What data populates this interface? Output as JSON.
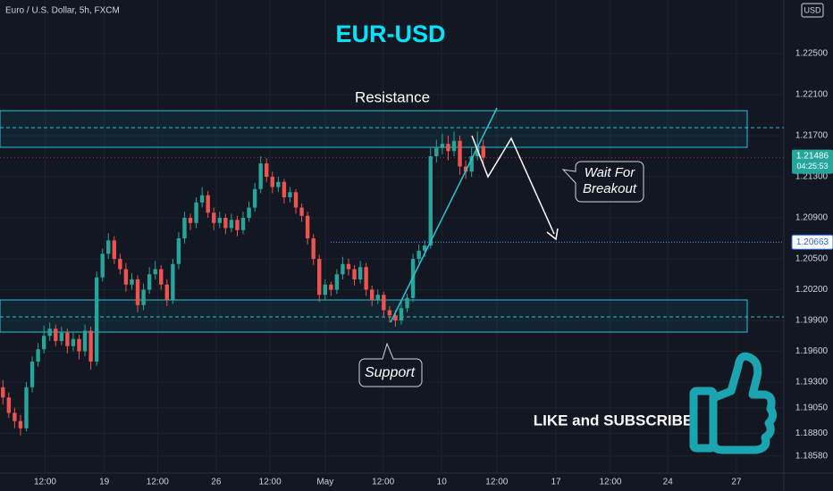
{
  "chart_data": {
    "type": "candlestick",
    "header": "Euro / U.S. Dollar, 5h, FXCM",
    "currency": "USD",
    "title": "EUR-USD",
    "annotations": {
      "resistance": "Resistance",
      "support": "Support",
      "wait_1": "Wait For",
      "wait_2": "Breakout",
      "cta": "LIKE and SUBSCRIBE"
    },
    "up_color": "#26a69a",
    "down_color": "#ef5350",
    "candles": [
      [
        1.1925,
        1.1932,
        1.1908,
        1.1915
      ],
      [
        1.1915,
        1.192,
        1.1895,
        1.19
      ],
      [
        1.19,
        1.1905,
        1.1885,
        1.1892
      ],
      [
        1.1892,
        1.1898,
        1.1878,
        1.1885
      ],
      [
        1.1885,
        1.193,
        1.1882,
        1.1925
      ],
      [
        1.1925,
        1.1955,
        1.192,
        1.195
      ],
      [
        1.195,
        1.1968,
        1.1945,
        1.1962
      ],
      [
        1.1962,
        1.1985,
        1.1958,
        1.1975
      ],
      [
        1.1975,
        1.1988,
        1.197,
        1.1982
      ],
      [
        1.1982,
        1.1986,
        1.1965,
        1.197
      ],
      [
        1.197,
        1.1984,
        1.1966,
        1.1978
      ],
      [
        1.1978,
        1.1982,
        1.1958,
        1.1965
      ],
      [
        1.1965,
        1.1978,
        1.196,
        1.1972
      ],
      [
        1.1972,
        1.1976,
        1.1952,
        1.196
      ],
      [
        1.196,
        1.1986,
        1.1955,
        1.198
      ],
      [
        1.198,
        1.1984,
        1.1942,
        1.195
      ],
      [
        1.195,
        1.2038,
        1.1946,
        1.2032
      ],
      [
        1.2032,
        1.206,
        1.2028,
        1.2055
      ],
      [
        1.2055,
        1.2075,
        1.205,
        1.2068
      ],
      [
        1.2068,
        1.2072,
        1.2045,
        1.205
      ],
      [
        1.205,
        1.2055,
        1.2035,
        1.204
      ],
      [
        1.204,
        1.2046,
        1.2018,
        1.2025
      ],
      [
        1.2025,
        1.2036,
        1.202,
        1.203
      ],
      [
        1.203,
        1.2034,
        1.1998,
        1.2005
      ],
      [
        1.2005,
        1.2026,
        1.2,
        1.202
      ],
      [
        1.202,
        1.2042,
        1.2016,
        1.2035
      ],
      [
        1.2035,
        1.2048,
        1.203,
        1.204
      ],
      [
        1.204,
        1.2044,
        1.202,
        1.2025
      ],
      [
        1.2025,
        1.203,
        1.2004,
        1.201
      ],
      [
        1.201,
        1.205,
        1.2006,
        1.2045
      ],
      [
        1.2045,
        1.2076,
        1.204,
        1.207
      ],
      [
        1.207,
        1.2096,
        1.2065,
        1.209
      ],
      [
        1.209,
        1.2094,
        1.2078,
        1.2085
      ],
      [
        1.2085,
        1.211,
        1.208,
        1.2105
      ],
      [
        1.2105,
        1.212,
        1.21,
        1.2112
      ],
      [
        1.2112,
        1.2116,
        1.209,
        1.2095
      ],
      [
        1.2095,
        1.21,
        1.2078,
        1.2085
      ],
      [
        1.2085,
        1.2096,
        1.208,
        1.209
      ],
      [
        1.209,
        1.2094,
        1.2074,
        1.208
      ],
      [
        1.208,
        1.2094,
        1.2076,
        1.2088
      ],
      [
        1.2088,
        1.2092,
        1.2072,
        1.2078
      ],
      [
        1.2078,
        1.2096,
        1.2074,
        1.209
      ],
      [
        1.209,
        1.2106,
        1.2086,
        1.21
      ],
      [
        1.21,
        1.2124,
        1.2096,
        1.2118
      ],
      [
        1.2118,
        1.215,
        1.2114,
        1.2143
      ],
      [
        1.2143,
        1.2148,
        1.2125,
        1.213
      ],
      [
        1.213,
        1.2135,
        1.2114,
        1.212
      ],
      [
        1.212,
        1.213,
        1.2115,
        1.2125
      ],
      [
        1.2125,
        1.2128,
        1.2104,
        1.211
      ],
      [
        1.211,
        1.212,
        1.2105,
        1.2115
      ],
      [
        1.2115,
        1.2118,
        1.2094,
        1.21
      ],
      [
        1.21,
        1.2104,
        1.2086,
        1.2092
      ],
      [
        1.2092,
        1.2096,
        1.2064,
        1.207
      ],
      [
        1.207,
        1.2074,
        1.2044,
        1.205
      ],
      [
        1.205,
        1.2054,
        1.2008,
        1.2015
      ],
      [
        1.2015,
        1.203,
        1.201,
        1.2025
      ],
      [
        1.2025,
        1.2028,
        1.2014,
        1.202
      ],
      [
        1.202,
        1.204,
        1.2016,
        1.2035
      ],
      [
        1.2035,
        1.2052,
        1.203,
        1.2045
      ],
      [
        1.2045,
        1.205,
        1.2034,
        1.204
      ],
      [
        1.204,
        1.2044,
        1.2024,
        1.203
      ],
      [
        1.203,
        1.2048,
        1.2026,
        1.2042
      ],
      [
        1.2042,
        1.2046,
        1.2014,
        1.202
      ],
      [
        1.202,
        1.2024,
        1.2004,
        1.201
      ],
      [
        1.201,
        1.202,
        1.2006,
        1.2015
      ],
      [
        1.2015,
        1.2018,
        1.1994,
        1.2
      ],
      [
        1.2,
        1.2004,
        1.1988,
        1.1995
      ],
      [
        1.1995,
        1.2,
        1.1984,
        1.199
      ],
      [
        1.199,
        1.2008,
        1.1986,
        1.2002
      ],
      [
        1.2002,
        1.2016,
        1.1998,
        1.2012
      ],
      [
        1.2012,
        1.2055,
        1.2008,
        1.205
      ],
      [
        1.205,
        1.2064,
        1.2046,
        1.2058
      ],
      [
        1.2058,
        1.2068,
        1.2052,
        1.2063
      ],
      [
        1.2063,
        1.2158,
        1.206,
        1.215
      ],
      [
        1.215,
        1.2166,
        1.2144,
        1.2158
      ],
      [
        1.2158,
        1.2172,
        1.2152,
        1.2162
      ],
      [
        1.2162,
        1.217,
        1.2146,
        1.2155
      ],
      [
        1.2155,
        1.2174,
        1.215,
        1.2165
      ],
      [
        1.2165,
        1.217,
        1.2132,
        1.214
      ],
      [
        1.214,
        1.2146,
        1.2128,
        1.2135
      ],
      [
        1.2135,
        1.2158,
        1.213,
        1.215
      ],
      [
        1.215,
        1.2174,
        1.2146,
        1.216
      ],
      [
        1.216,
        1.2166,
        1.214,
        1.21486
      ]
    ],
    "xlim": [
      -0.5,
      133.3
    ],
    "xticks": [
      {
        "value": 7.2,
        "label": "12:00"
      },
      {
        "value": 17.3,
        "label": "19"
      },
      {
        "value": 26.4,
        "label": "12:00"
      },
      {
        "value": 36.4,
        "label": "26"
      },
      {
        "value": 45.6,
        "label": "12:00"
      },
      {
        "value": 55,
        "label": "May"
      },
      {
        "value": 64.9,
        "label": "12:00"
      },
      {
        "value": 74.9,
        "label": "10"
      },
      {
        "value": 84.3,
        "label": "12:00"
      },
      {
        "value": 94.4,
        "label": "17"
      },
      {
        "value": 103.7,
        "label": "12:00"
      },
      {
        "value": 113.5,
        "label": "24"
      },
      {
        "value": 125.2,
        "label": "27"
      }
    ],
    "ylim": [
      1.18413,
      1.23022
    ],
    "yticks": [
      {
        "value": 1.225,
        "label": "1.22500"
      },
      {
        "value": 1.221,
        "label": "1.22100"
      },
      {
        "value": 1.217,
        "label": "1.21700"
      },
      {
        "value": 1.213,
        "label": "1.21300"
      },
      {
        "value": 1.209,
        "label": "1.20900"
      },
      {
        "value": 1.205,
        "label": "1.20500"
      },
      {
        "value": 1.202,
        "label": "1.20200"
      },
      {
        "value": 1.199,
        "label": "1.19900"
      },
      {
        "value": 1.196,
        "label": "1.19600"
      },
      {
        "value": 1.193,
        "label": "1.19300"
      },
      {
        "value": 1.1905,
        "label": "1.19050"
      },
      {
        "value": 1.188,
        "label": "1.18800"
      },
      {
        "value": 1.1858,
        "label": "1.18580"
      }
    ],
    "last_price": {
      "value": 1.21486,
      "label": "1.21486"
    },
    "countdown": "04:25:53",
    "level": {
      "value": 1.20663,
      "label": "1.20663"
    }
  }
}
